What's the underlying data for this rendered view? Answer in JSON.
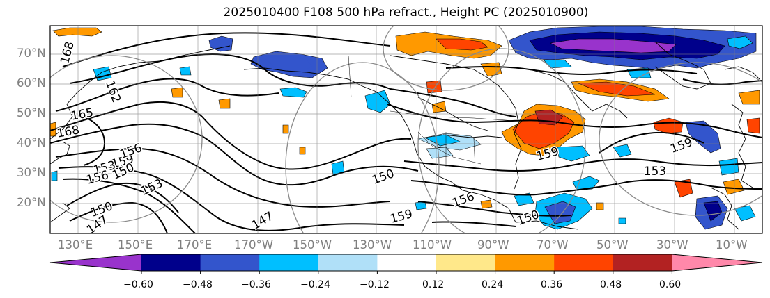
{
  "title": "2025010400 F108 500 hPa refract., Height PC (2025010900)",
  "lat_labels": [
    "70°N",
    "60°N",
    "50°N",
    "40°N",
    "30°N",
    "20°N"
  ],
  "lon_labels": [
    "130°E",
    "150°E",
    "170°E",
    "170°W",
    "150°W",
    "130°W",
    "110°W",
    "90°W",
    "70°W",
    "50°W",
    "30°W",
    "10°W"
  ],
  "contour_labels": [
    "168",
    "165",
    "168",
    "162",
    "159",
    "156",
    "153",
    "150",
    "156",
    "153",
    "150",
    "147",
    "147",
    "150",
    "159",
    "156",
    "159",
    "153",
    "159",
    "150"
  ],
  "colorbar": {
    "ticks": [
      "−0.60",
      "−0.48",
      "−0.36",
      "−0.24",
      "−0.12",
      "0.12",
      "0.24",
      "0.36",
      "0.48",
      "0.60"
    ],
    "colors": [
      "#9933cc",
      "#00008b",
      "#3355cc",
      "#00bfff",
      "#b0e0f8",
      "#ffffff",
      "#ffe88a",
      "#ff9900",
      "#ff4400",
      "#b22222",
      "#ff88aa"
    ]
  }
}
